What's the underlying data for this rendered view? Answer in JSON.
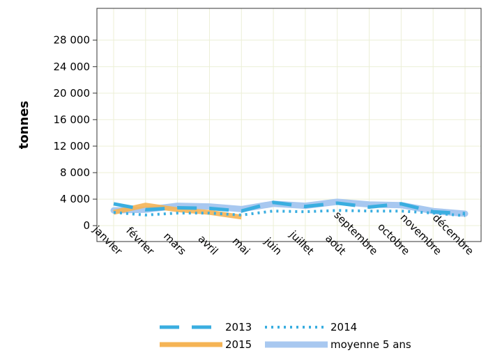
{
  "chart_data": {
    "type": "line",
    "title": "",
    "xlabel": "",
    "ylabel": "tonnes",
    "categories": [
      "janvier",
      "février",
      "mars",
      "avril",
      "mai",
      "juin",
      "juillet",
      "août",
      "septembre",
      "octobre",
      "novembre",
      "décembre"
    ],
    "ylim": [
      -2400,
      32800
    ],
    "yticks": [
      0,
      4000,
      8000,
      12000,
      16000,
      20000,
      24000,
      28000
    ],
    "ytick_labels": [
      "0",
      "4 000",
      "8 000",
      "12 000",
      "16 000",
      "20 000",
      "24 000",
      "28 000"
    ],
    "grid": true,
    "legend_position": "bottom",
    "series": [
      {
        "name": "moyenne 5 ans",
        "color": "#a8c8f0",
        "style": "thick",
        "values": [
          2300,
          2400,
          3000,
          2900,
          2500,
          3300,
          3000,
          3600,
          3200,
          3100,
          2200,
          1800
        ]
      },
      {
        "name": "2015",
        "color": "#f5b455",
        "style": "solid",
        "values": [
          2000,
          3100,
          2400,
          2000,
          1300,
          null,
          null,
          null,
          null,
          null,
          null,
          null
        ]
      },
      {
        "name": "2013",
        "color": "#3aaee0",
        "style": "dashed",
        "values": [
          3300,
          2400,
          2700,
          2600,
          2200,
          3500,
          2900,
          3400,
          2800,
          3300,
          2100,
          1800
        ]
      },
      {
        "name": "2014",
        "color": "#3aaee0",
        "style": "dotted",
        "values": [
          2000,
          1600,
          1900,
          1900,
          1600,
          2200,
          2100,
          2300,
          2200,
          2200,
          1900,
          1500
        ]
      }
    ],
    "legend": [
      {
        "series": "2013",
        "label": "2013"
      },
      {
        "series": "2014",
        "label": "2014"
      },
      {
        "series": "2015",
        "label": "2015"
      },
      {
        "series": "moyenne 5 ans",
        "label": "moyenne 5 ans"
      }
    ]
  }
}
